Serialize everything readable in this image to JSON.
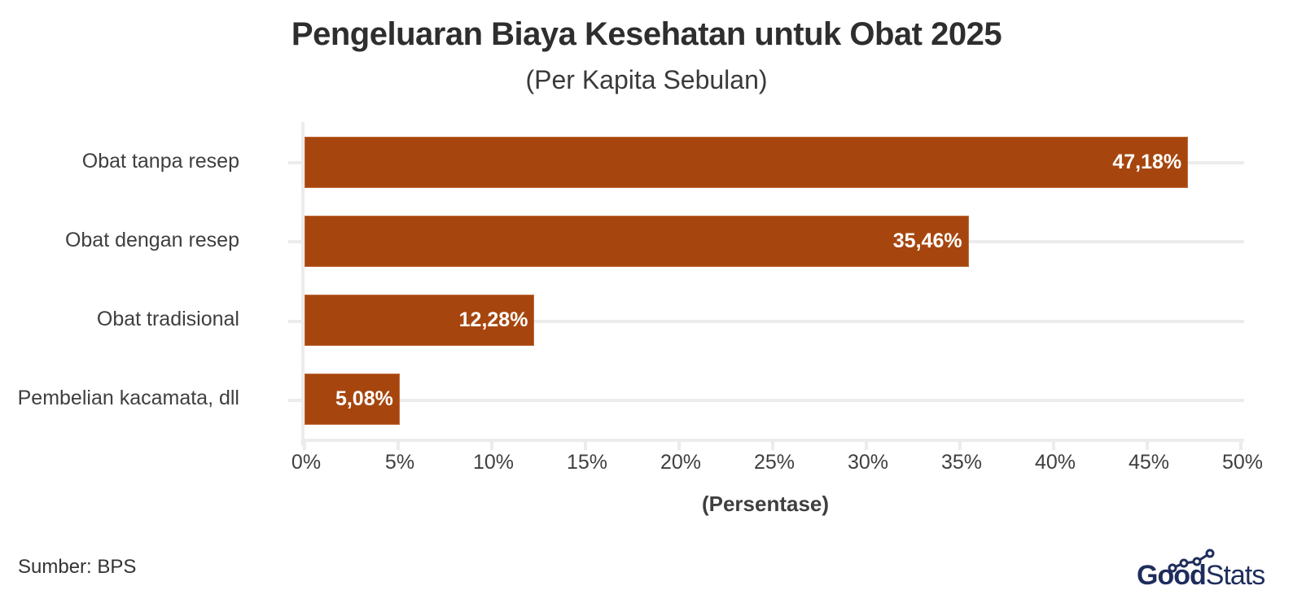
{
  "title": "Pengeluaran Biaya Kesehatan untuk Obat 2025",
  "subtitle": "(Per Kapita Sebulan)",
  "source": "Sumber: BPS",
  "logo": {
    "part1": "Good",
    "part2": "Stats",
    "icon": "line-chart-dots-icon",
    "color": "#1f2d5c"
  },
  "colors": {
    "bar": "#a6460e",
    "grid": "#ececec",
    "bar_label": "#ffffff"
  },
  "chart_data": {
    "type": "bar",
    "orientation": "horizontal",
    "title": "Pengeluaran Biaya Kesehatan untuk Obat 2025",
    "subtitle": "(Per Kapita Sebulan)",
    "xlabel": "(Persentase)",
    "ylabel": "",
    "categories": [
      "Obat tanpa resep",
      "Obat dengan resep",
      "Obat tradisional",
      "Pembelian kacamata, dll"
    ],
    "values": [
      47.18,
      35.46,
      12.28,
      5.08
    ],
    "value_labels": [
      "47,18%",
      "35,46%",
      "12,28%",
      "5,08%"
    ],
    "xlim": [
      0,
      50
    ],
    "xticks": [
      "0%",
      "5%",
      "10%",
      "15%",
      "20%",
      "25%",
      "30%",
      "35%",
      "40%",
      "45%",
      "50%"
    ],
    "grid": true,
    "legend": "none",
    "source": "Sumber: BPS"
  }
}
